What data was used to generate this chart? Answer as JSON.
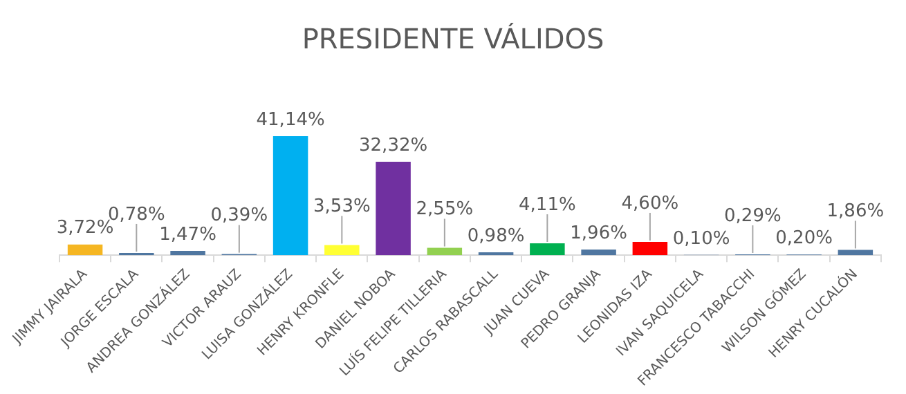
{
  "chart_data": {
    "type": "bar",
    "title": "PRESIDENTE VÁLIDOS",
    "categories": [
      "JIMMY JAIRALA",
      "JORGE ESCALA",
      "ANDREA GONZÁLEZ",
      "VICTOR ARAUZ",
      "LUISA GONZÁLEZ",
      "HENRY KRONFLE",
      "DANIEL NOBOA",
      "LUÍS FELIPE TILLERIA",
      "CARLOS RABASCALL",
      "JUAN CUEVA",
      "PEDRO GRANJA",
      "LEONIDAS IZA",
      "IVAN SAQUICELA",
      "FRANCESCO TABACCHI",
      "WILSON GÓMEZ",
      "HENRY CUCALÓN"
    ],
    "values": [
      3.72,
      0.78,
      1.47,
      0.39,
      41.14,
      3.53,
      32.32,
      2.55,
      0.98,
      4.11,
      1.96,
      4.6,
      0.1,
      0.29,
      0.2,
      1.86
    ],
    "value_labels": [
      "3,72%",
      "0,78%",
      "1,47%",
      "0,39%",
      "41,14%",
      "3,53%",
      "32,32%",
      "2,55%",
      "0,98%",
      "4,11%",
      "1,96%",
      "4,60%",
      "0,10%",
      "0,29%",
      "0,20%",
      "1,86%"
    ],
    "colors": [
      "#f5b622",
      "#4f76a0",
      "#4f76a0",
      "#4f76a0",
      "#00b0f0",
      "#ffff33",
      "#7030a0",
      "#92d050",
      "#4f76a0",
      "#00b050",
      "#4f76a0",
      "#ff0000",
      "#4f76a0",
      "#4f76a0",
      "#4f76a0",
      "#4f76a0"
    ],
    "tick_labels": "x",
    "grid": false,
    "legend": false
  }
}
